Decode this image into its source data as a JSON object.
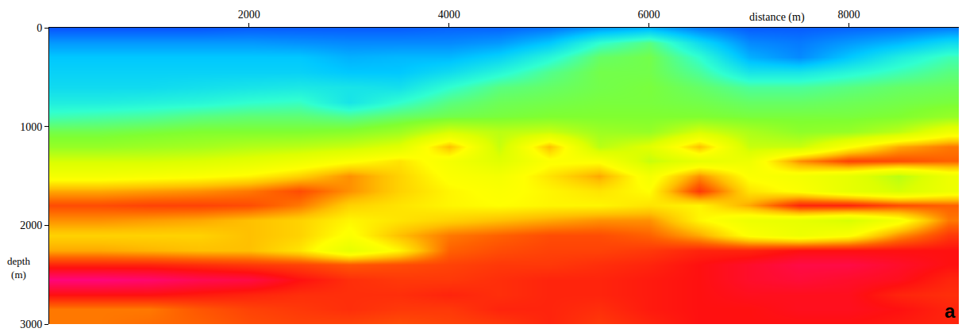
{
  "chart_data": {
    "type": "heatmap",
    "xlabel": "distance (m)",
    "ylabel": "depth (m)",
    "annotations": [
      "a"
    ],
    "grid": false,
    "xlim": [
      0,
      9100
    ],
    "ylim": [
      3000,
      0
    ],
    "xticks": [
      2000,
      4000,
      6000,
      8000
    ],
    "yticks": [
      0,
      1000,
      2000,
      3000
    ],
    "zlim": [
      0,
      10
    ],
    "x": [
      0,
      500,
      1000,
      1500,
      2000,
      2500,
      3000,
      3500,
      4000,
      4500,
      5000,
      5500,
      6000,
      6500,
      7000,
      7500,
      8000,
      8500,
      9000
    ],
    "y": [
      0,
      150,
      300,
      450,
      600,
      750,
      900,
      1050,
      1200,
      1350,
      1500,
      1650,
      1800,
      1950,
      2100,
      2250,
      2400,
      2550,
      2700,
      2850,
      3000
    ],
    "z": [
      [
        0.3,
        0.3,
        0.3,
        0.3,
        0.4,
        0.4,
        0.4,
        0.4,
        0.5,
        0.5,
        0.7,
        1.2,
        1.5,
        0.8,
        0.4,
        0.4,
        0.5,
        0.6,
        0.8
      ],
      [
        1.2,
        1.2,
        1.2,
        1.2,
        1.2,
        1.1,
        1.0,
        1.0,
        1.0,
        1.2,
        1.8,
        3.0,
        3.6,
        2.2,
        1.0,
        0.8,
        1.2,
        1.6,
        2.2
      ],
      [
        1.8,
        1.8,
        1.8,
        1.8,
        1.8,
        1.8,
        1.5,
        1.6,
        1.6,
        2.0,
        2.8,
        3.8,
        4.0,
        3.0,
        1.5,
        1.0,
        1.8,
        2.6,
        3.2
      ],
      [
        2.0,
        2.0,
        2.0,
        2.0,
        2.0,
        2.0,
        1.8,
        1.8,
        2.2,
        2.8,
        3.5,
        4.0,
        4.0,
        3.4,
        2.4,
        2.4,
        2.8,
        3.2,
        3.6
      ],
      [
        2.2,
        2.2,
        2.2,
        2.3,
        2.4,
        2.5,
        2.4,
        2.3,
        3.0,
        3.6,
        3.8,
        4.0,
        4.1,
        3.8,
        3.4,
        3.4,
        3.6,
        3.8,
        3.9
      ],
      [
        2.6,
        2.6,
        2.7,
        2.8,
        3.0,
        3.1,
        2.4,
        3.0,
        3.6,
        3.9,
        4.0,
        4.1,
        4.1,
        4.0,
        3.8,
        3.8,
        3.9,
        4.0,
        4.1
      ],
      [
        3.2,
        3.3,
        3.4,
        3.6,
        3.7,
        3.7,
        3.5,
        3.8,
        4.0,
        4.1,
        4.2,
        4.2,
        4.2,
        4.2,
        4.1,
        4.1,
        4.1,
        4.2,
        4.5
      ],
      [
        4.0,
        4.0,
        4.1,
        4.2,
        4.2,
        4.2,
        4.3,
        4.6,
        5.4,
        5.0,
        5.2,
        4.6,
        4.5,
        5.4,
        4.8,
        4.4,
        4.5,
        5.0,
        6.0
      ],
      [
        4.5,
        4.5,
        4.6,
        4.7,
        4.9,
        5.0,
        5.2,
        5.6,
        7.2,
        5.2,
        7.2,
        5.0,
        5.6,
        7.2,
        5.2,
        5.2,
        6.4,
        7.4,
        7.8
      ],
      [
        5.4,
        5.4,
        5.4,
        5.5,
        5.7,
        6.0,
        6.4,
        6.8,
        6.2,
        5.6,
        6.4,
        6.4,
        5.2,
        5.8,
        6.0,
        7.6,
        8.3,
        8.2,
        8.0
      ],
      [
        6.2,
        6.2,
        6.3,
        6.4,
        6.6,
        7.0,
        7.6,
        7.0,
        6.4,
        6.2,
        6.8,
        7.4,
        6.2,
        7.6,
        6.4,
        6.2,
        5.8,
        5.0,
        6.0
      ],
      [
        7.4,
        7.4,
        7.5,
        7.6,
        7.8,
        8.2,
        7.6,
        7.0,
        6.6,
        6.4,
        6.6,
        6.8,
        6.5,
        8.4,
        6.8,
        6.4,
        5.8,
        5.4,
        6.0
      ],
      [
        8.2,
        8.2,
        8.3,
        8.3,
        8.2,
        7.8,
        7.0,
        6.8,
        6.6,
        6.5,
        6.6,
        6.6,
        6.8,
        6.6,
        7.4,
        8.6,
        8.6,
        8.2,
        8.0
      ],
      [
        7.6,
        7.6,
        7.5,
        7.4,
        7.2,
        7.0,
        6.6,
        6.8,
        7.0,
        7.2,
        7.4,
        7.6,
        7.6,
        6.6,
        6.0,
        5.8,
        5.4,
        6.2,
        7.8
      ],
      [
        7.0,
        7.0,
        7.0,
        7.0,
        7.2,
        7.0,
        6.4,
        7.2,
        7.8,
        8.0,
        8.2,
        8.2,
        8.0,
        7.4,
        6.4,
        6.0,
        6.4,
        7.6,
        8.4
      ],
      [
        7.4,
        7.4,
        7.3,
        7.2,
        7.2,
        6.8,
        5.8,
        6.6,
        8.0,
        8.2,
        8.3,
        8.3,
        8.4,
        8.6,
        8.6,
        8.8,
        8.8,
        8.8,
        8.8
      ],
      [
        8.6,
        8.6,
        8.6,
        8.5,
        8.4,
        8.3,
        8.1,
        8.2,
        8.3,
        8.4,
        8.4,
        8.5,
        8.6,
        8.8,
        9.0,
        9.2,
        9.2,
        9.0,
        8.8
      ],
      [
        9.6,
        9.6,
        9.5,
        9.3,
        9.2,
        8.8,
        8.5,
        8.4,
        8.4,
        8.5,
        8.6,
        8.6,
        8.7,
        8.8,
        9.0,
        9.1,
        9.0,
        8.9,
        8.6
      ],
      [
        8.8,
        8.8,
        8.8,
        8.7,
        8.6,
        8.5,
        8.5,
        8.5,
        8.6,
        8.5,
        8.6,
        8.6,
        8.7,
        8.8,
        8.9,
        8.9,
        8.9,
        8.6,
        8.5
      ],
      [
        7.8,
        7.8,
        7.8,
        8.1,
        8.3,
        8.4,
        8.5,
        8.4,
        8.4,
        8.6,
        8.6,
        8.5,
        8.7,
        8.8,
        8.8,
        8.9,
        8.9,
        8.8,
        8.6
      ],
      [
        7.8,
        7.8,
        7.9,
        8.0,
        8.2,
        8.3,
        8.3,
        8.2,
        8.3,
        8.4,
        8.6,
        8.4,
        8.6,
        8.8,
        8.8,
        8.8,
        8.8,
        8.7,
        8.6
      ]
    ]
  }
}
